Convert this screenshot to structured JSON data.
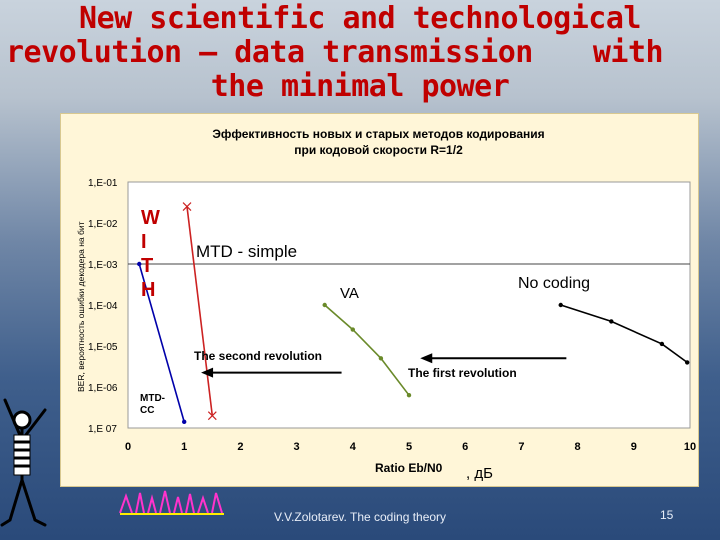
{
  "slide": {
    "title_lines": [
      "New scientific and technological",
      "revolution – data transmission",
      "with",
      "the minimal power"
    ],
    "footer": "V.V.Zolotarev. The coding theory",
    "page_number": "15"
  },
  "chart_data": {
    "type": "line",
    "title_lines": [
      "Эффективность новых и старых методов кодирования",
      "при кодовой скорости R=1/2"
    ],
    "xlabel": "Ratio Eb/N0",
    "xlabel_unit": ", дБ",
    "ylabel": "BER, вероятность ошибки декодера на бит",
    "xlim": [
      0,
      10
    ],
    "ylim_exponent": [
      -7,
      -1
    ],
    "x_ticks": [
      "0",
      "1",
      "2",
      "3",
      "4",
      "5",
      "6",
      "7",
      "8",
      "9",
      "10"
    ],
    "y_ticks": [
      "1,E-01",
      "1,E-02",
      "1,E-03",
      "1,E-04",
      "1,E-05",
      "1,E-06",
      "1,E 07"
    ],
    "reference_line_exponent": -3,
    "series": [
      {
        "name": "No coding",
        "color": "#000000",
        "marker": "dot",
        "points": [
          [
            7.7,
            -4.0
          ],
          [
            8.6,
            -4.4
          ],
          [
            9.5,
            -4.95
          ],
          [
            9.95,
            -5.4
          ]
        ]
      },
      {
        "name": "VA",
        "color": "#6a8a2a",
        "marker": "dot",
        "points": [
          [
            3.5,
            -4.0
          ],
          [
            4.0,
            -4.6
          ],
          [
            4.5,
            -5.3
          ],
          [
            5.0,
            -6.2
          ]
        ]
      },
      {
        "name": "MTD - simple",
        "color": "#cc2222",
        "marker": "x",
        "points": [
          [
            1.05,
            -1.6
          ],
          [
            1.5,
            -6.7
          ]
        ]
      },
      {
        "name": "MTD-CC",
        "color": "#0000aa",
        "marker": "dot",
        "points": [
          [
            0.2,
            -3.0
          ],
          [
            1.0,
            -6.85
          ]
        ]
      }
    ],
    "annotations": {
      "with_letters": [
        "W",
        "I",
        "T",
        "H"
      ],
      "mtd_simple": "MTD - simple",
      "va": "VA",
      "no_coding": "No coding",
      "second_revolution": "The second revolution",
      "first_revolution": "The first revolution",
      "mtd_cc_line1": "MTD-",
      "mtd_cc_line2": "CC"
    },
    "arrows": [
      {
        "name": "second-revolution-arrow",
        "from_x": 3.8,
        "to_x": 1.3,
        "y_exp": -5.65
      },
      {
        "name": "first-revolution-arrow",
        "from_x": 7.8,
        "to_x": 5.2,
        "y_exp": -5.3
      }
    ],
    "grid": "horizontal line at 1E-03 only",
    "legend": "none"
  },
  "colors": {
    "title": "#c00000",
    "panel": "#fff6d8",
    "plot_bg": "#ffffff"
  }
}
